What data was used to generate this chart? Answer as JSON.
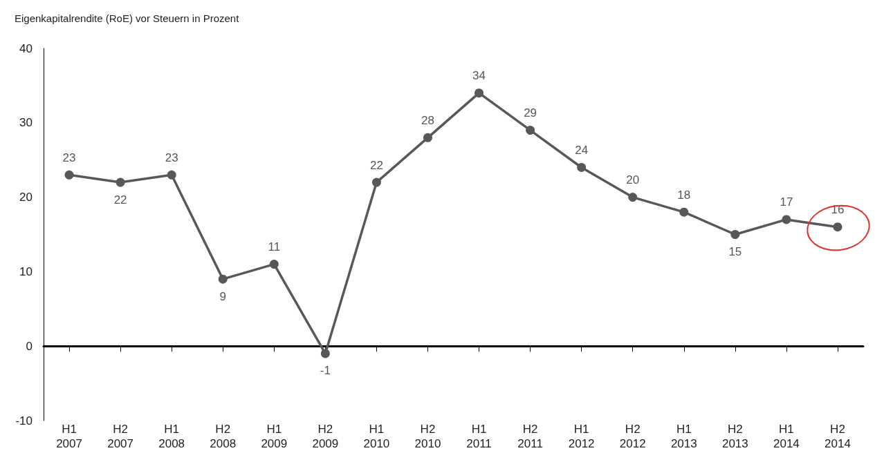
{
  "chart_data": {
    "type": "line",
    "title": "Eigenkapitalrendite (RoE) vor Steuern in Prozent",
    "categories": [
      "H1\n2007",
      "H2\n2007",
      "H1\n2008",
      "H2\n2008",
      "H1\n2009",
      "H2\n2009",
      "H1\n2010",
      "H2\n2010",
      "H1\n2011",
      "H2\n2011",
      "H1\n2012",
      "H2\n2012",
      "H1\n2013",
      "H2\n2013",
      "H1\n2014",
      "H2\n2014"
    ],
    "series": [
      {
        "color": "#58585a",
        "values": [
          23,
          22,
          23,
          9,
          11,
          -1,
          22,
          28,
          34,
          29,
          24,
          20,
          18,
          15,
          17,
          16
        ]
      }
    ],
    "ylim": [
      -10,
      40
    ],
    "yticks": [
      -10,
      0,
      10,
      20,
      30,
      40
    ],
    "data_labels": true,
    "marker": "circle",
    "line_style": "solid"
  }
}
